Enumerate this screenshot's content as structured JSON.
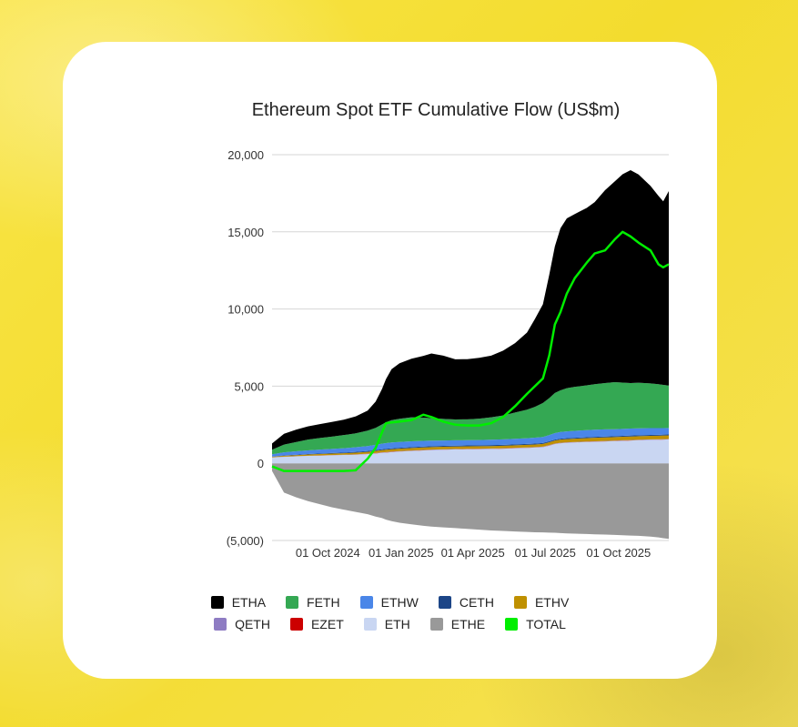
{
  "chart_data": {
    "type": "area",
    "title": "Ethereum Spot ETF Cumulative Flow (US$m)",
    "xlabel": "",
    "ylabel": "",
    "ylim": [
      -5000,
      20000
    ],
    "yticks": [
      {
        "value": 20000,
        "label": "20,000"
      },
      {
        "value": 15000,
        "label": "15,000"
      },
      {
        "value": 10000,
        "label": "10,000"
      },
      {
        "value": 5000,
        "label": "5,000"
      },
      {
        "value": 0,
        "label": "0"
      },
      {
        "value": -5000,
        "label": "(5,000)"
      }
    ],
    "xlim": [
      0,
      498
    ],
    "x_unit": "days since 23 Jul 2024",
    "xticks": [
      {
        "value": 70,
        "label": "01 Oct 2024"
      },
      {
        "value": 162,
        "label": "01 Jan 2025"
      },
      {
        "value": 252,
        "label": "01 Apr 2025"
      },
      {
        "value": 343,
        "label": "01 Jul 2025"
      },
      {
        "value": 435,
        "label": "01 Oct 2025"
      }
    ],
    "grid": true,
    "x": [
      0,
      15,
      30,
      45,
      60,
      75,
      90,
      105,
      120,
      130,
      138,
      143,
      150,
      160,
      175,
      190,
      200,
      215,
      230,
      245,
      260,
      275,
      290,
      305,
      320,
      330,
      340,
      348,
      355,
      362,
      370,
      380,
      395,
      405,
      418,
      430,
      440,
      450,
      460,
      475,
      485,
      491,
      498
    ],
    "series": [
      {
        "name": "ETHE",
        "color": "#999999",
        "values": [
          -500,
          -1900,
          -2200,
          -2450,
          -2650,
          -2850,
          -3000,
          -3150,
          -3300,
          -3450,
          -3550,
          -3650,
          -3750,
          -3850,
          -3950,
          -4050,
          -4100,
          -4150,
          -4200,
          -4250,
          -4300,
          -4350,
          -4380,
          -4420,
          -4450,
          -4470,
          -4480,
          -4490,
          -4500,
          -4520,
          -4540,
          -4560,
          -4580,
          -4600,
          -4620,
          -4640,
          -4660,
          -4680,
          -4700,
          -4750,
          -4800,
          -4850,
          -4900
        ]
      },
      {
        "name": "ETH",
        "color": "#c9d6f2",
        "values": [
          380,
          420,
          450,
          480,
          500,
          520,
          540,
          560,
          600,
          640,
          680,
          700,
          730,
          760,
          800,
          840,
          860,
          880,
          900,
          910,
          920,
          930,
          950,
          980,
          1000,
          1020,
          1050,
          1150,
          1250,
          1300,
          1330,
          1350,
          1380,
          1400,
          1420,
          1440,
          1460,
          1480,
          1500,
          1520,
          1530,
          1540,
          1550
        ]
      },
      {
        "name": "EZET",
        "color": "#cc0000",
        "values": [
          0,
          0,
          0,
          0,
          5,
          5,
          5,
          5,
          10,
          10,
          10,
          10,
          10,
          10,
          10,
          10,
          10,
          10,
          10,
          10,
          10,
          10,
          10,
          10,
          10,
          10,
          10,
          10,
          10,
          10,
          10,
          10,
          10,
          10,
          10,
          10,
          10,
          10,
          10,
          10,
          10,
          10,
          10
        ]
      },
      {
        "name": "QETH",
        "color": "#8e7cc3",
        "values": [
          5,
          10,
          10,
          10,
          10,
          10,
          10,
          15,
          15,
          20,
          20,
          20,
          20,
          20,
          20,
          20,
          20,
          20,
          20,
          20,
          20,
          20,
          20,
          20,
          20,
          20,
          20,
          20,
          20,
          20,
          20,
          20,
          20,
          20,
          20,
          20,
          20,
          20,
          20,
          20,
          20,
          20,
          20
        ]
      },
      {
        "name": "ETHV",
        "color": "#bf9000",
        "values": [
          40,
          60,
          70,
          80,
          90,
          95,
          100,
          110,
          120,
          130,
          140,
          150,
          150,
          155,
          160,
          160,
          160,
          160,
          160,
          160,
          160,
          160,
          160,
          160,
          165,
          170,
          180,
          190,
          200,
          210,
          210,
          215,
          220,
          225,
          230,
          230,
          230,
          230,
          230,
          230,
          230,
          230,
          230
        ]
      },
      {
        "name": "CETH",
        "color": "#1c4587",
        "values": [
          10,
          20,
          25,
          30,
          35,
          40,
          45,
          50,
          55,
          60,
          60,
          60,
          60,
          60,
          60,
          60,
          60,
          60,
          60,
          60,
          60,
          60,
          60,
          60,
          60,
          60,
          60,
          60,
          60,
          60,
          60,
          60,
          60,
          60,
          60,
          60,
          60,
          60,
          60,
          60,
          60,
          60,
          60
        ]
      },
      {
        "name": "ETHW",
        "color": "#4a86e8",
        "values": [
          150,
          200,
          220,
          240,
          250,
          260,
          280,
          300,
          320,
          340,
          360,
          370,
          380,
          380,
          380,
          370,
          360,
          350,
          340,
          340,
          340,
          350,
          350,
          360,
          370,
          380,
          390,
          400,
          420,
          430,
          440,
          450,
          460,
          460,
          460,
          450,
          450,
          450,
          450,
          440,
          430,
          420,
          420
        ]
      },
      {
        "name": "FETH",
        "color": "#34a853",
        "values": [
          300,
          500,
          600,
          700,
          750,
          800,
          850,
          900,
          1000,
          1100,
          1250,
          1350,
          1450,
          1500,
          1550,
          1500,
          1450,
          1400,
          1350,
          1350,
          1380,
          1450,
          1550,
          1700,
          1850,
          2000,
          2200,
          2400,
          2600,
          2700,
          2800,
          2850,
          2900,
          2950,
          3000,
          3050,
          3000,
          2950,
          2950,
          2900,
          2850,
          2800,
          2750
        ]
      },
      {
        "name": "ETHA",
        "color": "#000000",
        "values": [
          400,
          700,
          800,
          850,
          900,
          950,
          1000,
          1100,
          1300,
          1700,
          2300,
          2800,
          3300,
          3600,
          3800,
          4000,
          4200,
          4100,
          3900,
          3900,
          3950,
          4000,
          4200,
          4500,
          5000,
          5700,
          6400,
          8000,
          9500,
          10500,
          11000,
          11200,
          11500,
          11800,
          12500,
          13000,
          13500,
          13800,
          13500,
          12800,
          12200,
          11900,
          12600
        ]
      }
    ],
    "total": {
      "name": "TOTAL",
      "color": "#00ee00",
      "values": [
        -200,
        -500,
        -500,
        -500,
        -500,
        -500,
        -500,
        -450,
        300,
        1000,
        2000,
        2600,
        2650,
        2700,
        2800,
        3150,
        3000,
        2700,
        2500,
        2450,
        2450,
        2600,
        3000,
        3700,
        4500,
        5000,
        5500,
        7000,
        9000,
        9800,
        11000,
        12000,
        13000,
        13600,
        13800,
        14500,
        15000,
        14700,
        14300,
        13800,
        12900,
        12700,
        12900
      ]
    },
    "legend": [
      [
        "ETHA",
        "FETH",
        "ETHW",
        "CETH",
        "ETHV"
      ],
      [
        "QETH",
        "EZET",
        "ETH",
        "ETHE",
        "TOTAL"
      ]
    ],
    "legend_position": "bottom"
  }
}
